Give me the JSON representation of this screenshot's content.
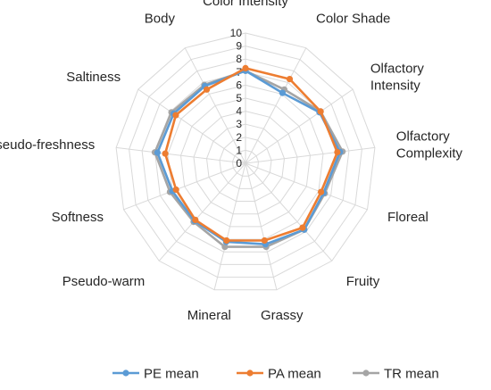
{
  "chart_data": {
    "type": "radar",
    "axes": [
      "Color Intensity",
      "Color Shade",
      "Olfactory Intensity",
      "Olfactory Complexity",
      "Floreal",
      "Fruity",
      "Grassy",
      "Mineral",
      "Pseudo-warm",
      "Softness",
      "Pseudo-freshness",
      "Saltiness",
      "Body"
    ],
    "axis_label_lines": [
      [
        "Color Intensity"
      ],
      [
        "Color Shade"
      ],
      [
        "Olfactory",
        "Intensity"
      ],
      [
        "Olfactory",
        "Complexity"
      ],
      [
        "Floreal"
      ],
      [
        "Fruity"
      ],
      [
        "Grassy"
      ],
      [
        "Mineral"
      ],
      [
        "Pseudo-warm"
      ],
      [
        "Softness"
      ],
      [
        "Pseudo-freshness"
      ],
      [
        "Saltiness"
      ],
      [
        "Body"
      ]
    ],
    "scale_ticks": [
      "0",
      "1",
      "2",
      "3",
      "4",
      "5",
      "6",
      "7",
      "8",
      "9",
      "10"
    ],
    "rmin": 0,
    "rmax": 10,
    "series": [
      {
        "name": "PE mean",
        "color": "#5b9bd5",
        "values": [
          7.1,
          6.1,
          6.9,
          7.3,
          6.4,
          6.8,
          6.4,
          6.2,
          5.9,
          6.0,
          6.8,
          6.7,
          6.7
        ]
      },
      {
        "name": "PA mean",
        "color": "#ed7d31",
        "values": [
          7.3,
          7.3,
          7.0,
          7.1,
          6.2,
          6.6,
          6.1,
          6.1,
          5.8,
          5.7,
          6.2,
          6.5,
          6.4
        ]
      },
      {
        "name": "TR mean",
        "color": "#a5a5a5",
        "values": [
          7.1,
          6.4,
          7.0,
          7.5,
          6.5,
          6.8,
          6.6,
          6.6,
          6.0,
          6.2,
          7.0,
          6.9,
          6.8
        ]
      }
    ],
    "draw_order": [
      2,
      0,
      1
    ],
    "legend_position": "bottom",
    "grid": true
  }
}
